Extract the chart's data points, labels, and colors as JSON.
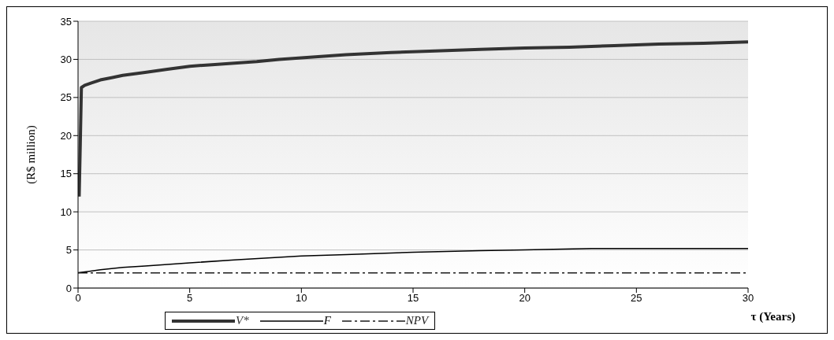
{
  "chart_data": {
    "type": "line",
    "ylabel": "(R$ million)",
    "xlabel": "τ (Years)",
    "xlim": [
      0,
      30
    ],
    "xticks": [
      0,
      5,
      10,
      15,
      20,
      25,
      30
    ],
    "ylim": [
      0,
      35
    ],
    "yticks": [
      0,
      5,
      10,
      15,
      20,
      25,
      30,
      35
    ],
    "grid": "y",
    "legend": "bottom",
    "series": [
      {
        "name": "V*",
        "color": "#333333",
        "line_style": "solid",
        "x": [
          0.05,
          0.1,
          0.15,
          0.3,
          0.6,
          1,
          1.5,
          2,
          3,
          4,
          5,
          6,
          7,
          8,
          9,
          10,
          12,
          14,
          16,
          18,
          20,
          22,
          24,
          26,
          28,
          30
        ],
        "values": [
          12,
          19,
          26.3,
          26.6,
          26.9,
          27.3,
          27.6,
          27.9,
          28.3,
          28.7,
          29.1,
          29.3,
          29.5,
          29.7,
          30,
          30.2,
          30.6,
          30.9,
          31.1,
          31.3,
          31.5,
          31.6,
          31.8,
          32,
          32.1,
          32.3
        ]
      },
      {
        "name": "F",
        "color": "#000000",
        "line_style": "solid",
        "x": [
          0,
          0.5,
          1,
          2,
          3,
          5,
          7,
          10,
          12,
          15,
          18,
          20,
          23,
          25,
          30
        ],
        "values": [
          2,
          2.2,
          2.4,
          2.7,
          2.9,
          3.3,
          3.7,
          4.2,
          4.4,
          4.7,
          4.9,
          5,
          5.2,
          5.2,
          5.2
        ]
      },
      {
        "name": "NPV",
        "color": "#1a1a1a",
        "line_style": "dashed",
        "x": [
          0,
          30
        ],
        "values": [
          2,
          2
        ]
      }
    ]
  }
}
